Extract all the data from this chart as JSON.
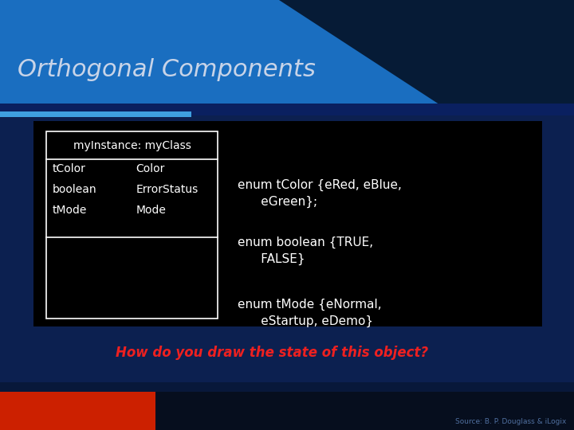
{
  "title": "Orthogonal Components",
  "title_color": "#c8d4e8",
  "title_fontsize": 22,
  "bg_blue": "#1a6ec0",
  "bg_dark_navy": "#061630",
  "bg_mid_navy": "#0a2a5e",
  "content_bg": "#050a10",
  "accent_bar_color": "#3fa0e0",
  "uml_box_title": "myInstance: myClass",
  "uml_attributes": [
    "tColor",
    "boolean",
    "tMode"
  ],
  "uml_types": [
    "Color",
    "ErrorStatus",
    "Mode"
  ],
  "enum_text_1": "enum tColor {eRed, eBlue,\n      eGreen};",
  "enum_text_2": "enum boolean {TRUE,\n      FALSE}",
  "enum_text_3": "enum tMode {eNormal,\n      eStartup, eDemo}",
  "question_text": "How do you draw the state of this object?",
  "question_color": "#ee2020",
  "source_text": "Source: B. P. Douglass & iLogix",
  "source_color": "#5070a0",
  "white": "#ffffff",
  "red_bar": "#cc2000",
  "dark_bar": "#060e1e"
}
